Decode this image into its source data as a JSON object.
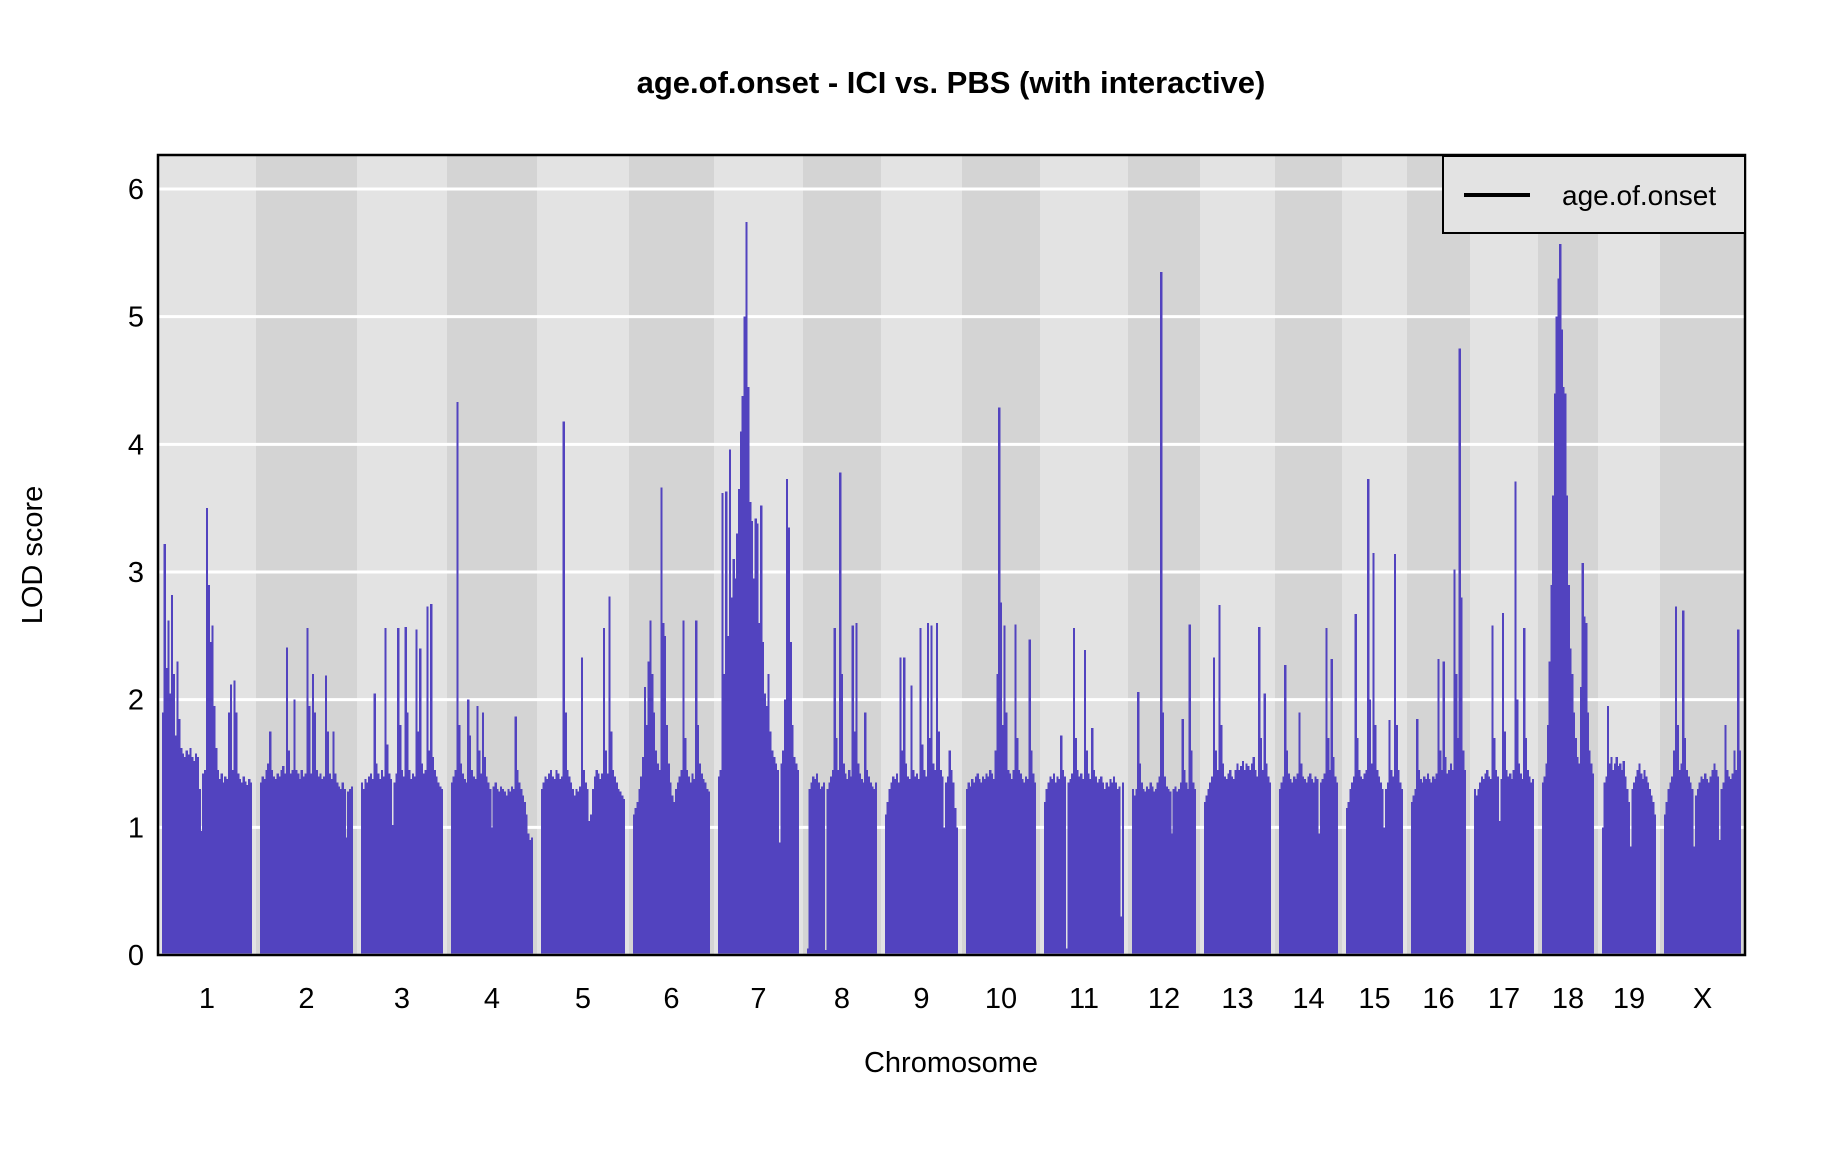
{
  "title": "age.of.onset - ICI vs. PBS (with interactive)",
  "legend": {
    "label": "age.of.onset"
  },
  "axes": {
    "y_label": "LOD score",
    "x_label": "Chromosome"
  },
  "colors": {
    "series": "#5243bf",
    "band_light": "#e3e3e3",
    "band_dark": "#d4d4d4",
    "grid": "#ffffff",
    "frame": "#000000",
    "legend_bg": "#e3e3e3",
    "text": "#000000"
  },
  "chart_data": {
    "type": "line",
    "title": "age.of.onset - ICI vs. PBS (with interactive)",
    "xlabel": "Chromosome",
    "ylabel": "LOD score",
    "series_name": "age.of.onset",
    "ylim": [
      0,
      6.26
    ],
    "y_ticks": [
      0,
      1,
      2,
      3,
      4,
      5,
      6
    ],
    "grid": "horizontal-white-on-gray-bands",
    "legend_position": "top-right",
    "chromosomes": [
      {
        "name": "1",
        "rel_width": 98,
        "lod": [
          1.9,
          3.22,
          2.25,
          2.62,
          2.05,
          2.82,
          2.2,
          1.72,
          2.3,
          1.85,
          1.62,
          1.58,
          1.55,
          1.6,
          1.57,
          1.62,
          1.55,
          1.52,
          1.58,
          1.55,
          1.3,
          0.97,
          1.42,
          1.45,
          3.5,
          2.9,
          2.45,
          2.58,
          1.95,
          1.62,
          1.45,
          1.38,
          1.42,
          1.35,
          1.4,
          1.38,
          1.9,
          2.12,
          1.45,
          2.15,
          1.9,
          1.42,
          1.38,
          1.35,
          1.4,
          1.36,
          1.33,
          1.38,
          1.35
        ]
      },
      {
        "name": "2",
        "rel_width": 101,
        "lod": [
          1.35,
          1.4,
          1.38,
          1.45,
          1.5,
          1.75,
          1.45,
          1.4,
          1.38,
          1.42,
          1.4,
          1.45,
          1.48,
          1.42,
          2.41,
          1.6,
          1.42,
          1.45,
          2.0,
          1.45,
          1.42,
          1.38,
          1.45,
          1.4,
          1.42,
          2.56,
          1.95,
          1.42,
          2.2,
          1.9,
          1.45,
          1.4,
          1.42,
          1.38,
          1.4,
          2.19,
          1.75,
          1.42,
          1.38,
          1.75,
          1.42,
          1.35,
          1.32,
          1.3,
          1.35,
          1.3,
          0.92,
          1.28,
          1.3,
          1.32
        ]
      },
      {
        "name": "3",
        "rel_width": 90,
        "lod": [
          1.35,
          1.3,
          1.38,
          1.35,
          1.4,
          1.42,
          1.38,
          2.05,
          1.5,
          1.42,
          1.38,
          1.45,
          1.4,
          2.56,
          1.65,
          1.42,
          1.38,
          1.02,
          1.35,
          1.42,
          2.56,
          1.8,
          1.45,
          1.4,
          2.57,
          1.9,
          1.45,
          1.38,
          1.42,
          1.4,
          2.55,
          1.75,
          2.4,
          1.5,
          1.42,
          1.45,
          2.73,
          1.6,
          2.75,
          1.55,
          1.45,
          1.4,
          1.35,
          1.32,
          1.3
        ]
      },
      {
        "name": "4",
        "rel_width": 90,
        "lod": [
          1.35,
          1.4,
          1.45,
          4.33,
          1.8,
          1.5,
          1.42,
          1.38,
          1.35,
          2.0,
          1.72,
          1.45,
          1.4,
          1.38,
          1.95,
          1.6,
          1.42,
          1.9,
          1.55,
          1.4,
          1.35,
          1.3,
          1.0,
          1.32,
          1.35,
          1.3,
          1.28,
          1.32,
          1.3,
          1.28,
          1.25,
          1.3,
          1.28,
          1.32,
          1.3,
          1.87,
          1.45,
          1.35,
          1.3,
          1.25,
          1.2,
          1.1,
          0.95,
          0.9,
          0.92
        ]
      },
      {
        "name": "5",
        "rel_width": 92,
        "lod": [
          1.3,
          1.35,
          1.4,
          1.38,
          1.42,
          1.45,
          1.4,
          1.38,
          1.45,
          1.42,
          1.38,
          1.4,
          4.18,
          1.9,
          1.45,
          1.4,
          1.35,
          1.3,
          1.25,
          1.3,
          1.28,
          1.32,
          2.33,
          1.45,
          1.35,
          1.3,
          1.05,
          1.1,
          1.3,
          1.4,
          1.45,
          1.42,
          1.38,
          1.42,
          2.56,
          1.6,
          1.42,
          2.81,
          1.75,
          1.45,
          1.4,
          1.35,
          1.3,
          1.28,
          1.25,
          1.22
        ]
      },
      {
        "name": "6",
        "rel_width": 85,
        "lod": [
          1.1,
          1.15,
          1.2,
          1.3,
          1.4,
          1.55,
          2.1,
          1.8,
          2.3,
          2.62,
          2.2,
          1.9,
          1.6,
          1.5,
          1.45,
          3.66,
          2.6,
          2.5,
          1.8,
          1.5,
          1.35,
          1.25,
          1.2,
          1.3,
          1.35,
          1.4,
          1.45,
          2.62,
          1.7,
          1.45,
          1.4,
          1.35,
          1.42,
          1.38,
          2.62,
          1.8,
          1.5,
          1.42,
          1.38,
          1.35,
          1.3,
          1.28
        ]
      },
      {
        "name": "7",
        "rel_width": 89,
        "lod": [
          1.4,
          1.45,
          3.62,
          2.2,
          3.63,
          2.5,
          3.96,
          2.8,
          3.1,
          2.95,
          3.3,
          3.65,
          4.1,
          4.38,
          5.0,
          5.74,
          4.45,
          3.55,
          3.4,
          2.95,
          3.42,
          3.38,
          2.6,
          3.52,
          2.45,
          2.05,
          1.95,
          2.2,
          1.75,
          1.6,
          1.55,
          1.5,
          1.45,
          0.88,
          1.5,
          1.6,
          2.0,
          3.73,
          3.35,
          2.45,
          1.8,
          1.55,
          1.5,
          1.45
        ]
      },
      {
        "name": "8",
        "rel_width": 78,
        "lod": [
          0.05,
          1.3,
          1.35,
          1.4,
          1.38,
          1.42,
          1.35,
          1.3,
          1.32,
          1.35,
          0.04,
          1.3,
          1.35,
          1.4,
          1.45,
          2.56,
          1.7,
          1.45,
          3.78,
          2.2,
          1.5,
          1.42,
          1.38,
          1.45,
          1.4,
          2.58,
          1.75,
          2.6,
          1.5,
          1.42,
          1.38,
          1.35,
          1.9,
          1.45,
          1.4,
          1.35,
          1.32,
          1.3,
          1.35
        ]
      },
      {
        "name": "9",
        "rel_width": 81,
        "lod": [
          1.1,
          1.2,
          1.3,
          1.35,
          1.4,
          1.38,
          1.42,
          1.35,
          2.33,
          1.6,
          2.33,
          1.5,
          1.4,
          1.38,
          2.11,
          1.45,
          1.4,
          1.42,
          1.38,
          2.56,
          1.65,
          1.45,
          1.4,
          2.6,
          1.7,
          2.58,
          1.5,
          1.45,
          2.6,
          1.75,
          1.45,
          1.4,
          1.0,
          1.35,
          1.4,
          1.6,
          1.45,
          1.35,
          1.15,
          1.0
        ]
      },
      {
        "name": "10",
        "rel_width": 78,
        "lod": [
          1.3,
          1.35,
          1.32,
          1.38,
          1.35,
          1.4,
          1.42,
          1.38,
          1.35,
          1.4,
          1.38,
          1.42,
          1.4,
          1.45,
          1.42,
          1.38,
          1.6,
          2.2,
          4.29,
          2.76,
          1.8,
          2.58,
          1.9,
          1.45,
          1.42,
          1.38,
          1.45,
          2.59,
          1.7,
          1.45,
          1.42,
          1.38,
          1.35,
          1.4,
          1.38,
          2.47,
          1.6,
          1.42,
          1.35
        ]
      },
      {
        "name": "11",
        "rel_width": 88,
        "lod": [
          1.2,
          1.3,
          1.35,
          1.4,
          1.38,
          1.42,
          1.35,
          1.4,
          1.38,
          1.72,
          1.45,
          1.4,
          0.05,
          1.35,
          1.38,
          1.42,
          2.56,
          1.7,
          1.45,
          1.4,
          1.42,
          1.38,
          2.39,
          1.6,
          1.42,
          1.38,
          1.78,
          1.45,
          1.4,
          1.35,
          1.38,
          1.4,
          1.35,
          1.3,
          1.35,
          1.32,
          1.38,
          1.35,
          1.4,
          1.35,
          1.3,
          1.32,
          0.3,
          1.35
        ]
      },
      {
        "name": "12",
        "rel_width": 72,
        "lod": [
          1.3,
          1.25,
          1.3,
          2.06,
          1.5,
          1.35,
          1.3,
          1.28,
          1.32,
          1.3,
          1.35,
          1.32,
          1.28,
          1.3,
          1.35,
          1.4,
          5.35,
          1.9,
          1.4,
          1.32,
          1.3,
          1.28,
          0.95,
          1.3,
          1.32,
          1.28,
          1.3,
          1.35,
          1.85,
          1.45,
          1.35,
          1.3,
          2.59,
          1.6,
          1.35,
          1.3
        ]
      },
      {
        "name": "13",
        "rel_width": 75,
        "lod": [
          1.2,
          1.25,
          1.3,
          1.35,
          1.4,
          2.33,
          1.6,
          1.45,
          2.74,
          1.8,
          1.5,
          1.4,
          1.38,
          1.42,
          1.45,
          1.4,
          1.38,
          1.45,
          1.5,
          1.45,
          1.48,
          1.52,
          1.45,
          1.5,
          1.48,
          1.45,
          1.5,
          1.55,
          1.45,
          1.4,
          2.57,
          1.7,
          1.45,
          2.05,
          1.5,
          1.4,
          1.35
        ]
      },
      {
        "name": "14",
        "rel_width": 67,
        "lod": [
          1.3,
          1.35,
          1.4,
          2.27,
          1.6,
          1.42,
          1.38,
          1.35,
          1.4,
          1.38,
          1.42,
          1.9,
          1.5,
          1.4,
          1.38,
          1.35,
          1.4,
          1.42,
          1.38,
          1.35,
          1.4,
          1.38,
          0.95,
          1.35,
          1.38,
          1.42,
          2.56,
          1.7,
          1.45,
          2.32,
          1.55,
          1.4,
          1.35
        ]
      },
      {
        "name": "15",
        "rel_width": 65,
        "lod": [
          1.15,
          1.2,
          1.3,
          1.35,
          1.4,
          2.67,
          1.7,
          1.45,
          1.4,
          1.38,
          1.42,
          1.45,
          3.73,
          2.0,
          1.5,
          3.15,
          1.8,
          1.45,
          1.4,
          1.35,
          1.3,
          1.0,
          1.3,
          1.35,
          1.84,
          1.45,
          1.4,
          3.14,
          1.8,
          1.45,
          1.35,
          1.3
        ]
      },
      {
        "name": "16",
        "rel_width": 63,
        "lod": [
          1.2,
          1.25,
          1.3,
          1.85,
          1.45,
          1.38,
          1.35,
          1.4,
          1.38,
          1.42,
          1.38,
          1.35,
          1.4,
          1.38,
          1.42,
          2.32,
          1.6,
          1.45,
          2.3,
          1.55,
          1.42,
          1.45,
          1.5,
          1.45,
          3.02,
          2.2,
          1.7,
          4.75,
          2.8,
          1.6,
          1.45
        ]
      },
      {
        "name": "17",
        "rel_width": 68,
        "lod": [
          1.3,
          1.25,
          1.3,
          1.35,
          1.4,
          1.38,
          1.42,
          1.45,
          1.4,
          1.38,
          2.58,
          1.7,
          1.45,
          1.4,
          1.05,
          1.38,
          2.68,
          1.75,
          1.45,
          1.4,
          1.42,
          1.38,
          1.45,
          3.71,
          2.0,
          1.5,
          1.42,
          1.38,
          2.56,
          1.7,
          1.45,
          1.4,
          1.35,
          1.38
        ]
      },
      {
        "name": "18",
        "rel_width": 60,
        "lod": [
          1.35,
          1.4,
          1.5,
          1.8,
          2.3,
          2.9,
          3.6,
          4.4,
          5.0,
          5.3,
          5.57,
          4.9,
          4.45,
          4.4,
          3.6,
          2.9,
          2.4,
          2.2,
          1.9,
          1.7,
          1.55,
          1.5,
          2.1,
          3.07,
          2.65,
          2.6,
          1.9,
          1.6,
          1.5,
          1.42
        ]
      },
      {
        "name": "19",
        "rel_width": 62,
        "lod": [
          1.0,
          1.35,
          1.4,
          1.95,
          1.5,
          1.55,
          1.45,
          1.5,
          1.55,
          1.48,
          1.5,
          1.45,
          1.52,
          1.4,
          1.3,
          1.2,
          0.85,
          1.3,
          1.35,
          1.4,
          1.45,
          1.5,
          1.42,
          1.38,
          1.45,
          1.4,
          1.35,
          1.3,
          1.25,
          1.2,
          1.1
        ]
      },
      {
        "name": "X",
        "rel_width": 85,
        "lod": [
          1.1,
          1.2,
          1.3,
          1.35,
          1.4,
          1.6,
          2.73,
          1.8,
          1.45,
          1.5,
          2.7,
          1.7,
          1.45,
          1.4,
          1.35,
          1.3,
          0.85,
          1.25,
          1.3,
          1.35,
          1.4,
          1.38,
          1.42,
          1.38,
          1.35,
          1.4,
          1.45,
          1.5,
          1.45,
          1.4,
          0.9,
          1.3,
          1.35,
          1.8,
          1.45,
          1.4,
          1.38,
          1.42,
          1.6,
          1.45,
          2.55,
          1.6
        ]
      }
    ]
  }
}
